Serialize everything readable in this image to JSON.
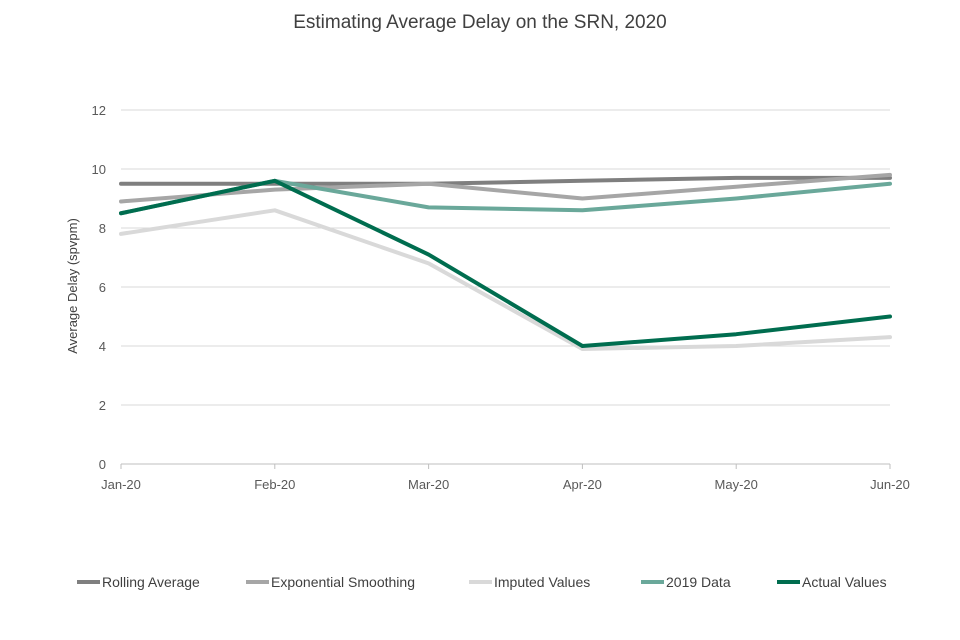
{
  "chart_data": {
    "type": "line",
    "title": "Estimating Average Delay on the SRN, 2020",
    "xlabel": "",
    "ylabel": "Average Delay (spvpm)",
    "categories": [
      "Jan-20",
      "Feb-20",
      "Mar-20",
      "Apr-20",
      "May-20",
      "Jun-20"
    ],
    "ylim": [
      0,
      12
    ],
    "yticks": [
      0,
      2,
      4,
      6,
      8,
      10,
      12
    ],
    "grid": true,
    "legend_position": "bottom",
    "series": [
      {
        "name": "Rolling Average",
        "color": "#7f7f7f",
        "values": [
          9.5,
          9.5,
          9.5,
          9.6,
          9.7,
          9.7
        ]
      },
      {
        "name": "Exponential Smoothing",
        "color": "#a6a6a6",
        "values": [
          8.9,
          9.3,
          9.5,
          9.0,
          9.4,
          9.8
        ]
      },
      {
        "name": "Imputed Values",
        "color": "#d9d9d9",
        "values": [
          7.8,
          8.6,
          6.8,
          3.9,
          4.0,
          4.3
        ]
      },
      {
        "name": "2019 Data",
        "color": "#6aa89a",
        "values": [
          8.5,
          9.6,
          8.7,
          8.6,
          9.0,
          9.5
        ]
      },
      {
        "name": "Actual Values",
        "color": "#006d4f",
        "values": [
          8.5,
          9.6,
          7.1,
          4.0,
          4.4,
          5.0
        ]
      }
    ]
  }
}
